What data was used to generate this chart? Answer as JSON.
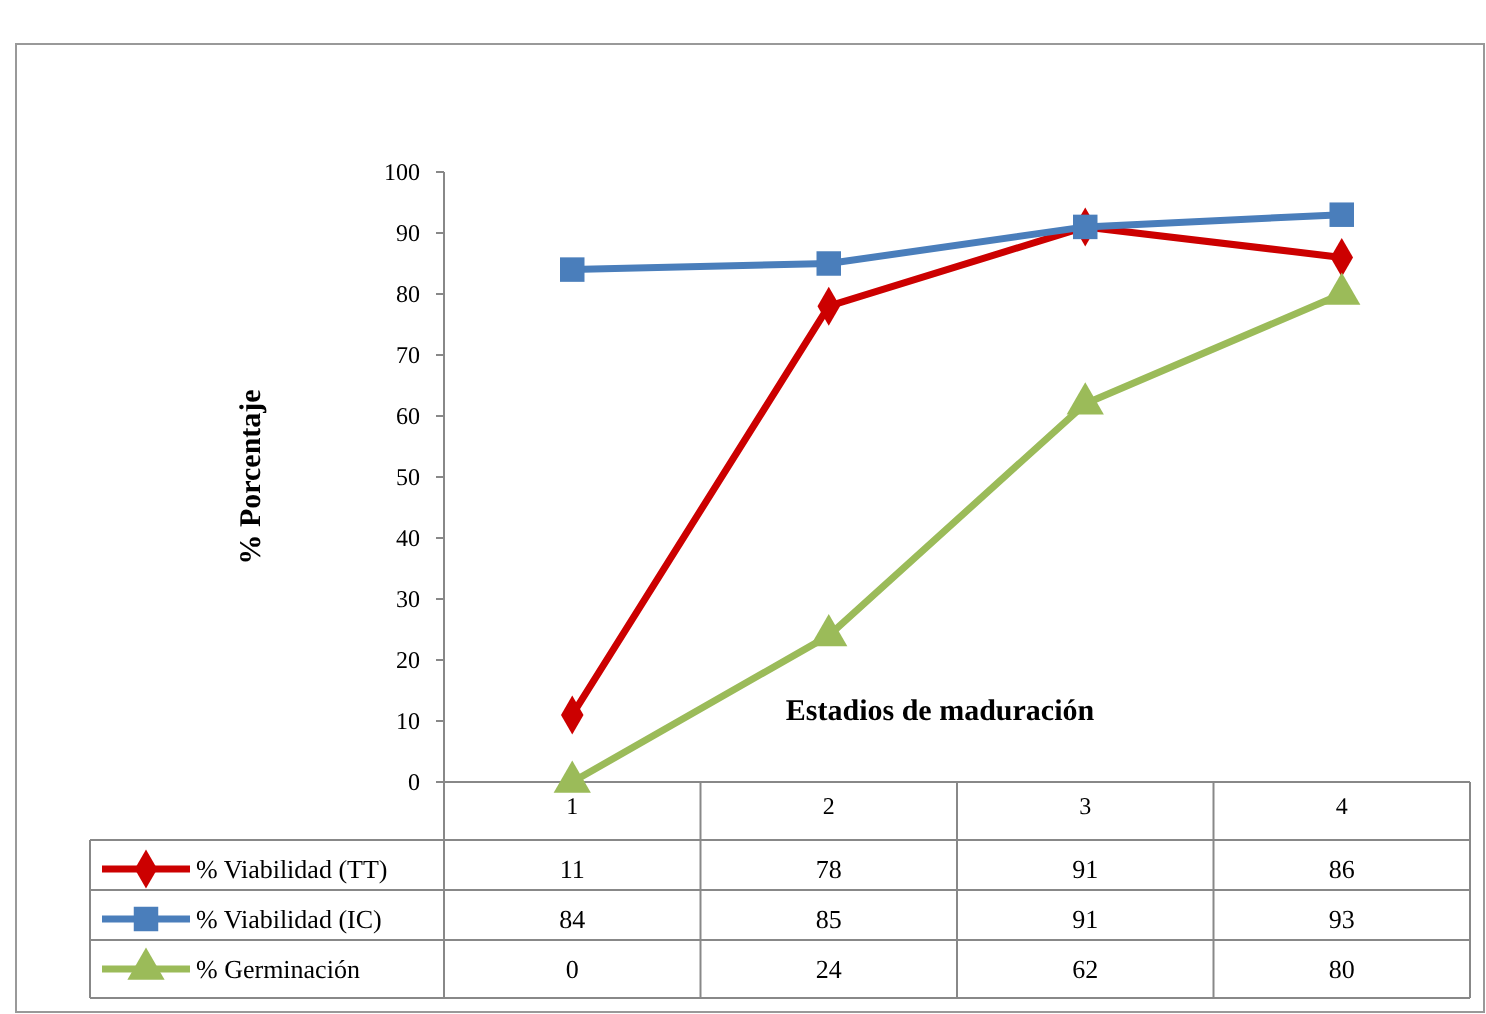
{
  "chart_data": {
    "type": "line",
    "ylabel": "% Porcentaje",
    "xlabel": "Estadios de maduración",
    "categories": [
      "1",
      "2",
      "3",
      "4"
    ],
    "ylim": [
      0,
      100
    ],
    "yticks": [
      0,
      10,
      20,
      30,
      40,
      50,
      60,
      70,
      80,
      90,
      100
    ],
    "grid": false,
    "legend": "bottom left",
    "data_labels": true,
    "line_style": "solid",
    "series": [
      {
        "name": "% Viabilidad (TT)",
        "color": "#cc0000",
        "marker": "diamond",
        "values": [
          11,
          78,
          91,
          86
        ]
      },
      {
        "name": "% Viabilidad (IC)",
        "color": "#4a7ebb",
        "marker": "square",
        "values": [
          84,
          85,
          91,
          93
        ]
      },
      {
        "name": "% Germinación",
        "color": "#9bbb59",
        "marker": "triangle",
        "values": [
          0,
          24,
          62,
          80
        ]
      }
    ]
  }
}
